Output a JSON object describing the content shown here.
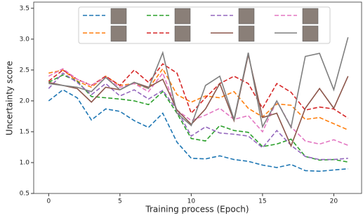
{
  "chart_data": {
    "type": "line",
    "x_label": "Training process (Epoch)",
    "y_label": "Uncertainty score",
    "x": [
      0,
      1,
      2,
      3,
      4,
      5,
      6,
      7,
      8,
      9,
      10,
      11,
      12,
      13,
      14,
      15,
      16,
      17,
      18,
      19,
      20,
      21
    ],
    "xlim": [
      -1.05,
      21.95
    ],
    "xticks": [
      0,
      5,
      10,
      15,
      20
    ],
    "ylim": [
      0.5,
      3.6
    ],
    "yticks": [
      0.5,
      {
        "value": 1.0,
        "label": "1.0"
      },
      1.5,
      {
        "value": 2.0,
        "label": "2.0"
      },
      2.5,
      {
        "value": 3.0,
        "label": "3.0"
      },
      3.5
    ],
    "series": [
      {
        "color": "#1f77b4",
        "dashed": true,
        "values": [
          2.0,
          2.18,
          2.05,
          1.69,
          1.87,
          1.83,
          1.68,
          1.57,
          1.8,
          1.33,
          1.07,
          1.06,
          1.11,
          1.05,
          1.02,
          0.96,
          0.92,
          0.97,
          0.87,
          0.86,
          0.88,
          0.9
        ]
      },
      {
        "color": "#ff7f0e",
        "dashed": true,
        "values": [
          2.45,
          2.5,
          2.32,
          2.22,
          2.4,
          2.25,
          2.28,
          2.2,
          2.52,
          2.1,
          1.98,
          2.08,
          2.05,
          2.15,
          1.88,
          1.74,
          1.95,
          1.93,
          1.7,
          1.73,
          1.63,
          1.53
        ]
      },
      {
        "color": "#2ca02c",
        "dashed": true,
        "values": [
          2.3,
          2.42,
          2.32,
          2.07,
          2.05,
          2.03,
          2.0,
          1.94,
          2.15,
          1.8,
          1.39,
          1.35,
          1.6,
          1.52,
          1.49,
          1.26,
          1.3,
          1.38,
          1.1,
          1.04,
          1.05,
          1.01
        ]
      },
      {
        "color": "#d62728",
        "dashed": true,
        "values": [
          2.32,
          2.5,
          2.35,
          2.25,
          2.4,
          2.25,
          2.5,
          2.3,
          2.6,
          2.45,
          1.8,
          2.05,
          2.28,
          2.4,
          2.28,
          1.88,
          2.28,
          2.14,
          1.85,
          1.9,
          1.87,
          1.72
        ]
      },
      {
        "color": "#9467bd",
        "dashed": true,
        "values": [
          2.2,
          2.45,
          2.3,
          2.1,
          2.28,
          2.08,
          2.18,
          2.03,
          2.17,
          1.85,
          1.43,
          1.58,
          1.48,
          1.46,
          1.43,
          1.24,
          1.52,
          1.28,
          1.1,
          1.05,
          1.05,
          1.07
        ]
      },
      {
        "color": "#e377c2",
        "dashed": true,
        "values": [
          2.4,
          2.52,
          2.35,
          2.25,
          2.38,
          2.22,
          2.28,
          2.15,
          2.45,
          1.85,
          1.68,
          1.77,
          1.88,
          1.7,
          1.76,
          1.5,
          2.0,
          1.58,
          1.35,
          1.3,
          1.37,
          1.28
        ]
      },
      {
        "color": "#8c564b",
        "dashed": false,
        "values": [
          2.3,
          2.25,
          2.2,
          1.98,
          2.22,
          2.18,
          2.3,
          2.22,
          2.35,
          1.85,
          1.62,
          1.87,
          2.28,
          1.68,
          2.75,
          1.73,
          1.8,
          1.27,
          1.88,
          2.2,
          1.88,
          2.4
        ]
      },
      {
        "color": "#7f7f7f",
        "dashed": false,
        "values": [
          2.28,
          2.25,
          2.22,
          2.15,
          2.38,
          2.18,
          2.3,
          2.2,
          2.78,
          1.8,
          1.6,
          2.25,
          2.4,
          1.7,
          2.78,
          1.58,
          2.0,
          1.57,
          2.72,
          2.77,
          2.18,
          3.03
        ]
      }
    ]
  }
}
